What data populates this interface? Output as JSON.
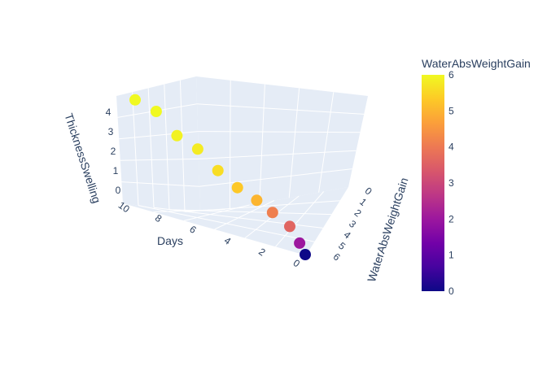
{
  "chart_data": {
    "type": "scatter3d",
    "x_axis": {
      "label": "Days",
      "range": [
        0,
        10
      ],
      "ticks": [
        "0",
        "2",
        "4",
        "6",
        "8",
        "10"
      ]
    },
    "y_axis": {
      "label": "WaterAbsWeightGain",
      "range": [
        0,
        6
      ],
      "ticks": [
        "0",
        "1",
        "2",
        "3",
        "4",
        "5",
        "6"
      ]
    },
    "z_axis": {
      "label": "ThicknessSwelling",
      "range": [
        0,
        4.6
      ],
      "ticks": [
        "0",
        "1",
        "2",
        "3",
        "4"
      ]
    },
    "colorbar": {
      "title": "WaterAbsWeightGain",
      "range": [
        0,
        6
      ],
      "ticks": [
        "0",
        "1",
        "2",
        "3",
        "4",
        "5",
        "6"
      ]
    },
    "colorscale": [
      "#0d0887",
      "#46039f",
      "#7201a8",
      "#9c179e",
      "#bd3786",
      "#d8576b",
      "#ed7953",
      "#fb9f3a",
      "#fdca26",
      "#f0f921"
    ],
    "points": [
      {
        "days": 0,
        "water_abs_weight_gain": 0,
        "thickness_swelling": 0
      },
      {
        "days": 1,
        "water_abs_weight_gain": 2,
        "thickness_swelling": 0.4
      },
      {
        "days": 2,
        "water_abs_weight_gain": 3.6,
        "thickness_swelling": 1.0
      },
      {
        "days": 3,
        "water_abs_weight_gain": 4.1,
        "thickness_swelling": 1.4
      },
      {
        "days": 4,
        "water_abs_weight_gain": 5.0,
        "thickness_swelling": 1.7
      },
      {
        "days": 5,
        "water_abs_weight_gain": 5.3,
        "thickness_swelling": 2.0
      },
      {
        "days": 6,
        "water_abs_weight_gain": 5.6,
        "thickness_swelling": 2.5
      },
      {
        "days": 7,
        "water_abs_weight_gain": 5.8,
        "thickness_swelling": 3.2
      },
      {
        "days": 8,
        "water_abs_weight_gain": 5.9,
        "thickness_swelling": 3.5
      },
      {
        "days": 9,
        "water_abs_weight_gain": 6.0,
        "thickness_swelling": 4.3
      },
      {
        "days": 10,
        "water_abs_weight_gain": 6.0,
        "thickness_swelling": 4.5
      }
    ]
  }
}
